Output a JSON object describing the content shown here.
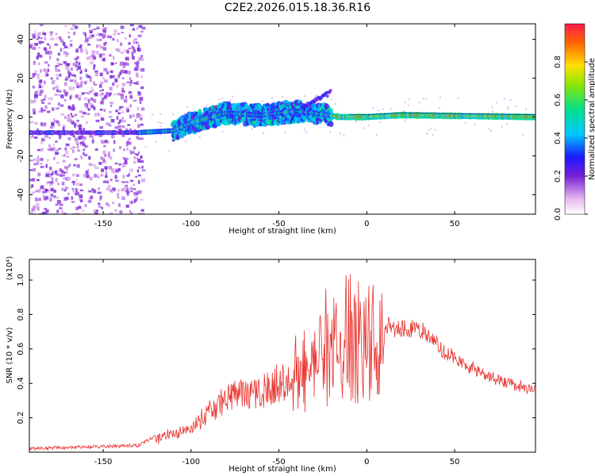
{
  "title": "C2E2.2026.015.18.36.R16",
  "chart_data": [
    {
      "type": "heatmap",
      "xlabel": "Height of straight line (km)",
      "ylabel": "Frequency (Hz)",
      "xlim": [
        -192,
        96
      ],
      "ylim": [
        -50,
        48
      ],
      "xticks": [
        -150,
        -100,
        -50,
        0,
        50
      ],
      "yticks": [
        -40,
        -20,
        0,
        20,
        40
      ],
      "colorbar": {
        "label": "Normalized spectral amplitude",
        "range": [
          0.0,
          1.0
        ],
        "ticks": [
          0.0,
          0.2,
          0.4,
          0.6,
          0.8
        ]
      },
      "ridge": [
        {
          "x": -192,
          "y": -8
        },
        {
          "x": -130,
          "y": -8
        },
        {
          "x": -110,
          "y": -7
        },
        {
          "x": -100,
          "y": -3
        },
        {
          "x": -80,
          "y": 2
        },
        {
          "x": -60,
          "y": 1
        },
        {
          "x": -40,
          "y": 3
        },
        {
          "x": -30,
          "y": 2
        },
        {
          "x": -15,
          "y": 0
        },
        {
          "x": 0,
          "y": 0
        },
        {
          "x": 20,
          "y": 1
        },
        {
          "x": 96,
          "y": 0
        }
      ]
    },
    {
      "type": "line",
      "xlabel": "Height of straight line (km)",
      "ylabel": "SNR (10 * v/v)",
      "scale_label": "(x10⁴)",
      "xlim": [
        -192,
        96
      ],
      "ylim": [
        0,
        1.12
      ],
      "xticks": [
        -150,
        -100,
        -50,
        0,
        50
      ],
      "yticks": [
        0.2,
        0.4,
        0.6,
        0.8,
        1.0
      ],
      "color": "#e8312c",
      "envelope": [
        {
          "x": -192,
          "y": 0.02
        },
        {
          "x": -130,
          "y": 0.04
        },
        {
          "x": -115,
          "y": 0.12
        },
        {
          "x": -100,
          "y": 0.18
        },
        {
          "x": -80,
          "y": 0.4
        },
        {
          "x": -60,
          "y": 0.45
        },
        {
          "x": -45,
          "y": 0.55
        },
        {
          "x": -30,
          "y": 0.75
        },
        {
          "x": -15,
          "y": 0.95
        },
        {
          "x": 0,
          "y": 0.9
        },
        {
          "x": 15,
          "y": 0.78
        },
        {
          "x": 30,
          "y": 0.76
        },
        {
          "x": 50,
          "y": 0.58
        },
        {
          "x": 70,
          "y": 0.47
        },
        {
          "x": 96,
          "y": 0.38
        }
      ]
    }
  ]
}
